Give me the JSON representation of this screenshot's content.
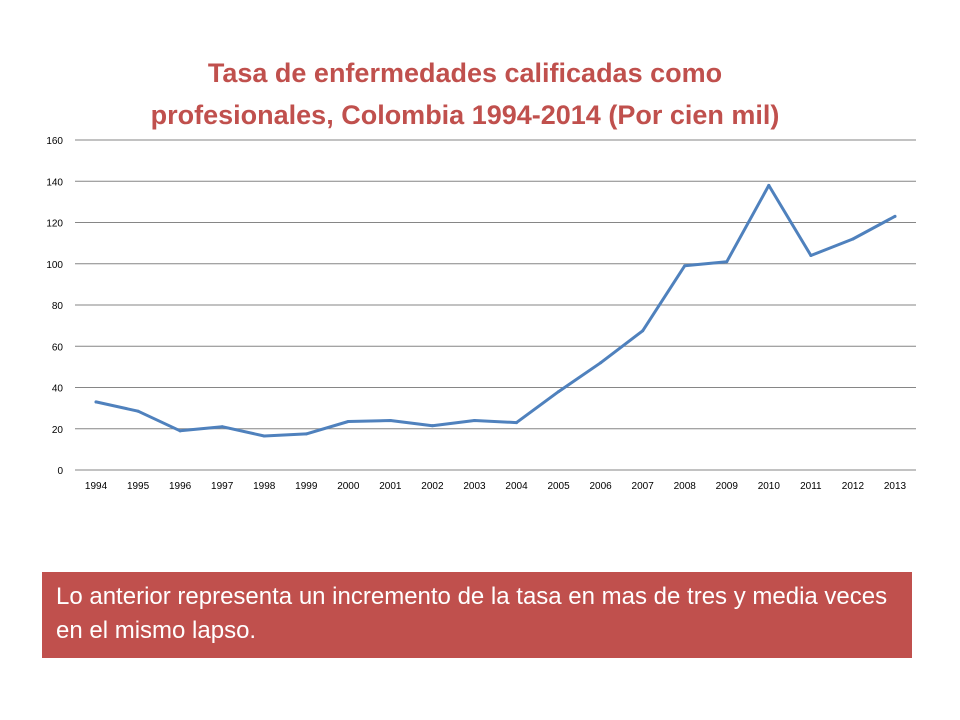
{
  "chart_data": {
    "type": "line",
    "title_lines": [
      "Tasa de enfermedades calificadas como",
      "profesionales, Colombia 1994-2014 (Por cien mil)"
    ],
    "xlabel": "",
    "ylabel": "",
    "categories": [
      "1994",
      "1995",
      "1996",
      "1997",
      "1998",
      "1999",
      "2000",
      "2001",
      "2002",
      "2003",
      "2004",
      "2005",
      "2006",
      "2007",
      "2008",
      "2009",
      "2010",
      "2011",
      "2012",
      "2013"
    ],
    "series": [
      {
        "color": "#4F81BD",
        "values": [
          33,
          28.5,
          19,
          21,
          16.5,
          17.5,
          23.5,
          24,
          21.5,
          24,
          23,
          38,
          52,
          67.5,
          99,
          101,
          138,
          104,
          112,
          123
        ]
      }
    ],
    "ylim": [
      0,
      160
    ],
    "yticks": [
      0,
      20,
      40,
      60,
      80,
      100,
      120,
      140,
      160
    ],
    "grid": true,
    "legend": "none"
  },
  "note": {
    "text": "Lo anterior representa un incremento de la tasa en mas de tres y media veces en el mismo lapso.",
    "background": "#C0504D"
  }
}
